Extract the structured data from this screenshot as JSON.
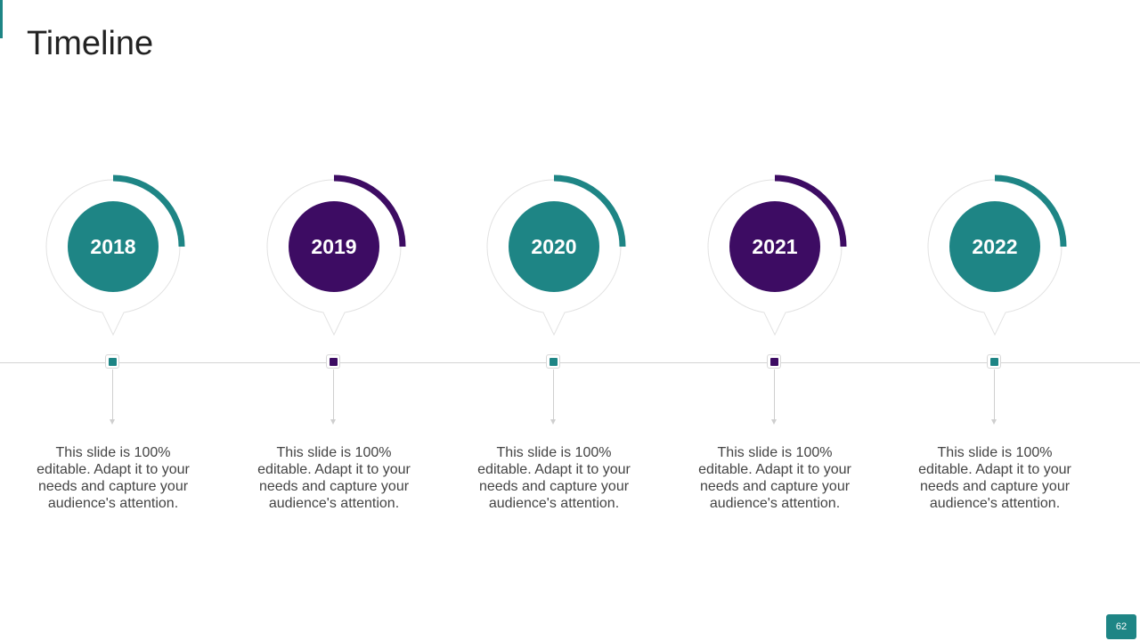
{
  "title": "Timeline",
  "page_number": "62",
  "colors": {
    "teal": "#1e8585",
    "purple": "#3d0c63",
    "outline": "#e2e2e2",
    "axis": "#d4d4d4",
    "text": "#444444"
  },
  "milestones": [
    {
      "year": "2018",
      "text": "This slide is 100% editable. Adapt it to your needs and capture your audience's attention.",
      "color": "#1e8585"
    },
    {
      "year": "2019",
      "text": "This slide is 100% editable. Adapt it to your needs and capture your audience's attention.",
      "color": "#3d0c63"
    },
    {
      "year": "2020",
      "text": "This slide is 100% editable. Adapt it to your needs and capture your audience's attention.",
      "color": "#1e8585"
    },
    {
      "year": "2021",
      "text": "This slide is 100% editable. Adapt it to your needs and capture your audience's attention.",
      "color": "#3d0c63"
    },
    {
      "year": "2022",
      "text": "This slide is 100% editable. Adapt it to your needs and capture your audience's attention.",
      "color": "#1e8585"
    }
  ]
}
